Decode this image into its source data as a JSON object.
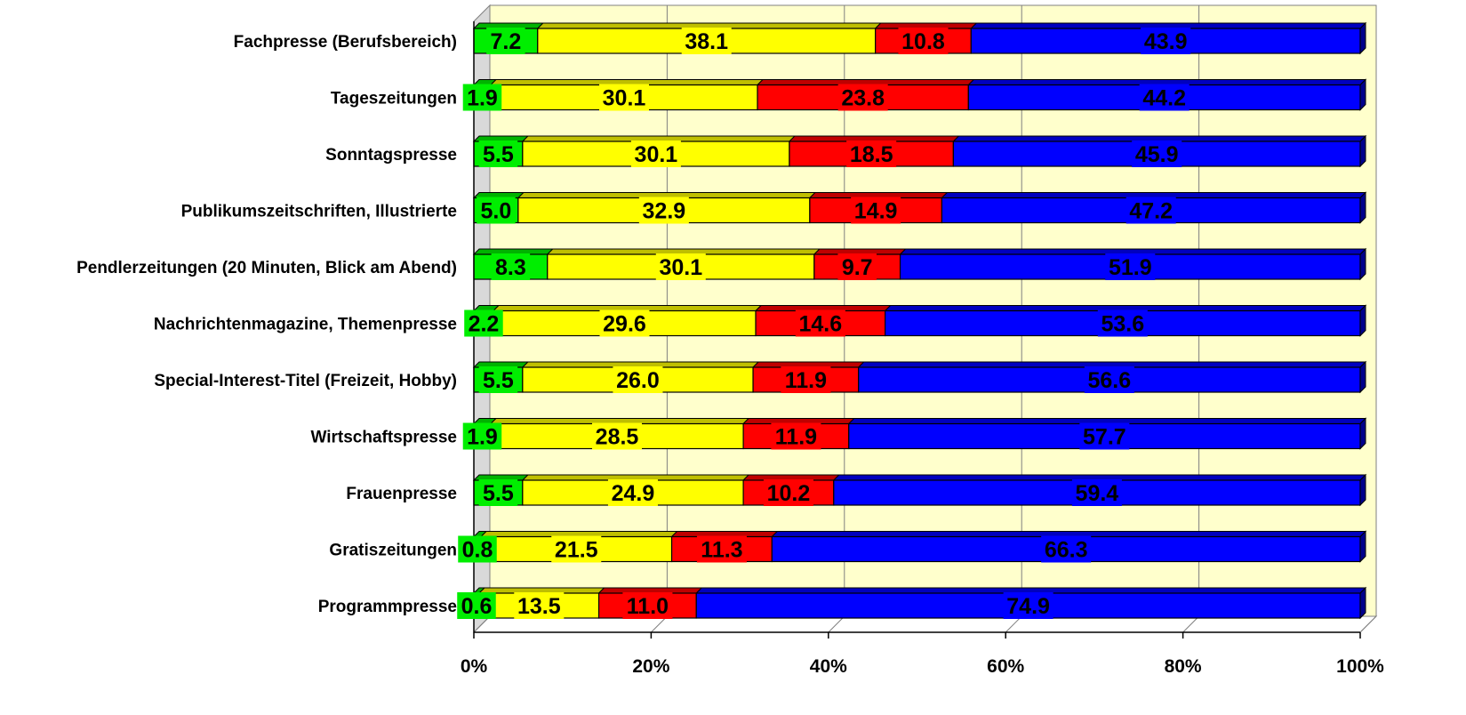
{
  "chart_data": {
    "type": "bar",
    "orientation": "horizontal",
    "stacked": "percent",
    "three_d": true,
    "categories": [
      "Fachpresse (Berufsbereich)",
      "Tageszeitungen",
      "Sonntagspresse",
      "Publikumszeitschriften, Illustrierte",
      "Pendlerzeitungen (20 Minuten, Blick am Abend)",
      "Nachrichtenmagazine, Themenpresse",
      "Special-Interest-Titel (Freizeit, Hobby)",
      "Wirtschaftspresse",
      "Frauenpresse",
      "Gratiszeitungen",
      "Programmpresse"
    ],
    "series": [
      {
        "color": "#00ee00",
        "values": [
          7.2,
          1.9,
          5.5,
          5.0,
          8.3,
          2.2,
          5.5,
          1.9,
          5.5,
          0.8,
          0.6
        ],
        "labels": [
          "7.2",
          "1.9",
          "5.5",
          "5.0",
          "8.3",
          "2.2",
          "5.5",
          "1.9",
          "5.5",
          "0.8",
          "0.6"
        ]
      },
      {
        "color": "#ffff00",
        "values": [
          38.1,
          30.1,
          30.1,
          32.9,
          30.1,
          29.6,
          26.0,
          28.5,
          24.9,
          21.5,
          13.5
        ],
        "labels": [
          "38.1",
          "30.1",
          "30.1",
          "32.9",
          "30.1",
          "29.6",
          "26.0",
          "28.5",
          "24.9",
          "21.5",
          "13.5"
        ]
      },
      {
        "color": "#ff0000",
        "values": [
          10.8,
          23.8,
          18.5,
          14.9,
          9.7,
          14.6,
          11.9,
          11.9,
          10.2,
          11.3,
          11.0
        ],
        "labels": [
          "10.8",
          "23.8",
          "18.5",
          "14.9",
          "9.7",
          "14.6",
          "11.9",
          "11.9",
          "10.2",
          "11.3",
          "11.0"
        ]
      },
      {
        "color": "#0000ff",
        "values": [
          43.9,
          44.2,
          45.9,
          47.2,
          51.9,
          53.6,
          56.6,
          57.7,
          59.4,
          66.3,
          74.9
        ],
        "labels": [
          "43.9",
          "44.2",
          "45.9",
          "47.2",
          "51.9",
          "53.6",
          "56.6",
          "57.7",
          "59.4",
          "66.3",
          "74.9"
        ]
      }
    ],
    "xlim": [
      0,
      100
    ],
    "x_ticks": [
      "0%",
      "20%",
      "40%",
      "60%",
      "80%",
      "100%"
    ],
    "grid": true,
    "legend": "none",
    "plot_background": "#ffffcc"
  }
}
